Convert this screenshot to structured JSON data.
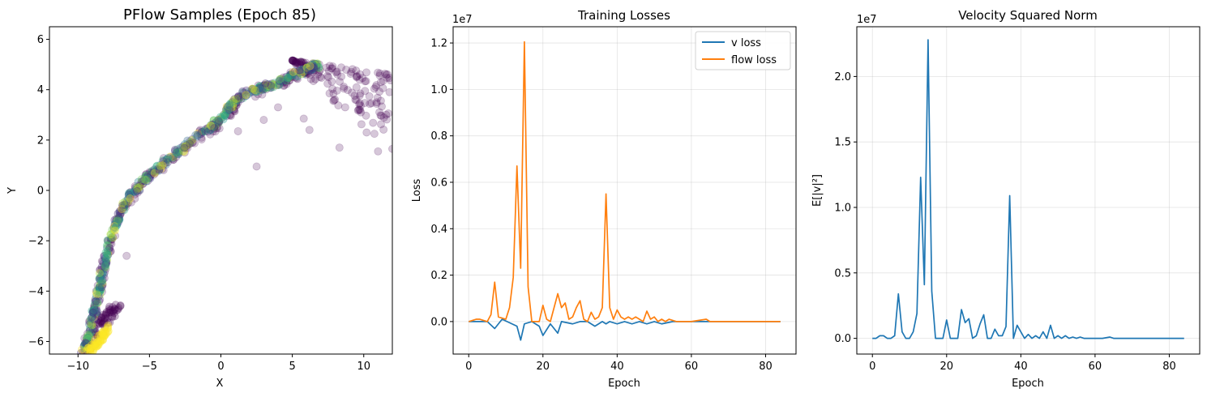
{
  "chart_data": [
    {
      "type": "scatter",
      "title": "PFlow Samples (Epoch 85)",
      "xlabel": "X",
      "ylabel": "Y",
      "xlim": [
        -12,
        12
      ],
      "ylim": [
        -6.5,
        6.5
      ],
      "xticks": [
        -10,
        -5,
        0,
        5,
        10
      ],
      "yticks": [
        -6,
        -4,
        -2,
        0,
        2,
        4,
        6
      ],
      "grid": false,
      "colormap": "viridis",
      "trajectory": [
        {
          "x": -9.7,
          "y": -6.5
        },
        {
          "x": -9.2,
          "y": -5.6
        },
        {
          "x": -8.7,
          "y": -4.5
        },
        {
          "x": -8.3,
          "y": -3.3
        },
        {
          "x": -7.8,
          "y": -2.0
        },
        {
          "x": -7.1,
          "y": -0.9
        },
        {
          "x": -6.2,
          "y": -0.1
        },
        {
          "x": -5.0,
          "y": 0.6
        },
        {
          "x": -3.5,
          "y": 1.3
        },
        {
          "x": -2.0,
          "y": 2.0
        },
        {
          "x": -0.5,
          "y": 2.6
        },
        {
          "x": 0.5,
          "y": 3.2
        },
        {
          "x": 1.5,
          "y": 3.8
        },
        {
          "x": 3.0,
          "y": 4.1
        },
        {
          "x": 4.5,
          "y": 4.4
        },
        {
          "x": 5.8,
          "y": 4.8
        },
        {
          "x": 7.0,
          "y": 5.0
        }
      ],
      "lower_arm": [
        {
          "x": -9.2,
          "y": -6.3
        },
        {
          "x": -8.8,
          "y": -5.7
        },
        {
          "x": -8.4,
          "y": -5.3
        },
        {
          "x": -8.0,
          "y": -5.0
        },
        {
          "x": -7.6,
          "y": -4.8
        },
        {
          "x": -7.2,
          "y": -4.7
        }
      ],
      "outliers": [
        {
          "x": 2.5,
          "y": 0.95
        },
        {
          "x": -6.6,
          "y": -2.6
        },
        {
          "x": 12.0,
          "y": 1.65
        },
        {
          "x": 11.0,
          "y": 1.55
        },
        {
          "x": 10.2,
          "y": 2.3
        },
        {
          "x": 8.3,
          "y": 1.7
        },
        {
          "x": 6.2,
          "y": 2.4
        },
        {
          "x": 3.0,
          "y": 2.8
        },
        {
          "x": 1.2,
          "y": 2.35
        },
        {
          "x": 11.2,
          "y": 4.3
        },
        {
          "x": 11.8,
          "y": 3.9
        },
        {
          "x": 10.9,
          "y": 3.5
        },
        {
          "x": 9.5,
          "y": 4.5
        },
        {
          "x": 9.8,
          "y": 3.1
        },
        {
          "x": 8.7,
          "y": 3.3
        },
        {
          "x": 5.8,
          "y": 2.85
        },
        {
          "x": 4.0,
          "y": 3.3
        },
        {
          "x": -7.4,
          "y": -1.8
        }
      ],
      "spread": {
        "max_x": 12.0,
        "min_y": 1.5,
        "count": 140
      }
    },
    {
      "type": "line",
      "title": "Training Losses",
      "xlabel": "Epoch",
      "ylabel": "Loss",
      "offset_text": "1e7",
      "xlim": [
        -4.2,
        88.2
      ],
      "ylim": [
        -0.14,
        1.27
      ],
      "xticks": [
        0,
        20,
        40,
        60,
        80
      ],
      "yticks": [
        0.0,
        0.2,
        0.4,
        0.6,
        0.8,
        1.0,
        1.2
      ],
      "grid": true,
      "legend": "upper right",
      "series": [
        {
          "name": "v loss",
          "color": "#1f77b4",
          "x": [
            0,
            2,
            3,
            5,
            7,
            9,
            13,
            14,
            15,
            17,
            19,
            20,
            22,
            24,
            25,
            28,
            30,
            32,
            34,
            36,
            37,
            38,
            40,
            42,
            44,
            46,
            48,
            50,
            52,
            55,
            60,
            64,
            66,
            70,
            84
          ],
          "y": [
            0,
            0,
            0,
            0,
            -0.03,
            0.01,
            -0.02,
            -0.08,
            -0.01,
            0,
            -0.02,
            -0.06,
            -0.01,
            -0.05,
            0,
            -0.01,
            0,
            0,
            -0.02,
            0,
            -0.01,
            0,
            -0.01,
            0,
            -0.01,
            0,
            -0.01,
            0,
            -0.01,
            0,
            0,
            0,
            0,
            0,
            0
          ]
        },
        {
          "name": "flow loss",
          "color": "#ff7f0e",
          "x": [
            0,
            2,
            3,
            5,
            6,
            7,
            8,
            10,
            11,
            12,
            13,
            14,
            15,
            16,
            17,
            18,
            19,
            20,
            21,
            22,
            24,
            25,
            26,
            27,
            28,
            29,
            30,
            31,
            32,
            33,
            34,
            35,
            36,
            37,
            38,
            39,
            40,
            41,
            42,
            43,
            44,
            45,
            46,
            47,
            48,
            49,
            50,
            51,
            52,
            53,
            54,
            56,
            60,
            64,
            65,
            70,
            84
          ],
          "y": [
            0,
            0.01,
            0.01,
            0,
            0.03,
            0.17,
            0.02,
            0.01,
            0.06,
            0.19,
            0.67,
            0.23,
            1.205,
            0.15,
            0,
            0,
            0,
            0.07,
            0.01,
            0,
            0.12,
            0.06,
            0.08,
            0.01,
            0.02,
            0.06,
            0.09,
            0.01,
            0,
            0.04,
            0.01,
            0.02,
            0.06,
            0.55,
            0.06,
            0.01,
            0.05,
            0.02,
            0.01,
            0.02,
            0.01,
            0.02,
            0.01,
            0,
            0.045,
            0.01,
            0.02,
            0,
            0.01,
            0,
            0.01,
            0,
            0,
            0.01,
            0,
            0,
            0
          ]
        }
      ]
    },
    {
      "type": "line",
      "title": "Velocity Squared Norm",
      "xlabel": "Epoch",
      "ylabel": "E[|v|²]",
      "offset_text": "1e7",
      "xlim": [
        -4.2,
        88.2
      ],
      "ylim": [
        -0.12,
        2.38
      ],
      "xticks": [
        0,
        20,
        40,
        60,
        80
      ],
      "yticks": [
        0.0,
        0.5,
        1.0,
        1.5,
        2.0
      ],
      "grid": true,
      "series": [
        {
          "name": "",
          "color": "#1f77b4",
          "x": [
            0,
            1,
            2,
            3,
            4,
            5,
            6,
            7,
            8,
            9,
            10,
            11,
            12,
            13,
            14,
            15,
            16,
            17,
            18,
            19,
            20,
            21,
            22,
            23,
            24,
            25,
            26,
            27,
            28,
            29,
            30,
            31,
            32,
            33,
            34,
            35,
            36,
            37,
            38,
            39,
            40,
            41,
            42,
            43,
            44,
            45,
            46,
            47,
            48,
            49,
            50,
            51,
            52,
            53,
            54,
            55,
            56,
            57,
            58,
            60,
            62,
            64,
            65,
            70,
            84
          ],
          "y": [
            0,
            0,
            0.02,
            0.02,
            0,
            0,
            0.02,
            0.34,
            0.05,
            0,
            0,
            0.05,
            0.19,
            1.23,
            0.41,
            2.28,
            0.36,
            0,
            0,
            0,
            0.14,
            0,
            0,
            0,
            0.22,
            0.12,
            0.15,
            0,
            0.02,
            0.11,
            0.18,
            0,
            0,
            0.07,
            0.02,
            0.02,
            0.09,
            1.09,
            0,
            0.1,
            0.05,
            0,
            0.03,
            0,
            0.02,
            0,
            0.05,
            0,
            0.1,
            0,
            0.02,
            0,
            0.02,
            0,
            0.01,
            0,
            0.01,
            0,
            0,
            0,
            0,
            0.01,
            0,
            0,
            0
          ]
        }
      ]
    }
  ]
}
